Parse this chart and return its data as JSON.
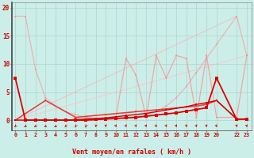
{
  "xlabel": "Vent moyen/en rafales ( km/h )",
  "bg_color": "#cceee8",
  "grid_color": "#aacccc",
  "xlim": [
    -0.3,
    23.5
  ],
  "ylim": [
    -1.8,
    21
  ],
  "yticks": [
    0,
    5,
    10,
    15,
    20
  ],
  "xticks": [
    0,
    1,
    2,
    3,
    4,
    5,
    6,
    7,
    8,
    9,
    10,
    11,
    12,
    13,
    14,
    15,
    16,
    17,
    18,
    19,
    20,
    22,
    23
  ],
  "series": [
    {
      "x": [
        0,
        1,
        2,
        3,
        4,
        5,
        6,
        7,
        8,
        9,
        10,
        11,
        12,
        13,
        14,
        15,
        16,
        17,
        18,
        19,
        20,
        22,
        23
      ],
      "y": [
        18.5,
        18.5,
        9.0,
        4.0,
        2.5,
        1.5,
        1.0,
        0.5,
        0.3,
        0.2,
        0.2,
        0.3,
        0.5,
        1.0,
        1.5,
        2.5,
        4.0,
        6.0,
        8.5,
        11.0,
        13.5,
        18.5,
        11.5
      ],
      "color": "#ff8888",
      "alpha": 0.55,
      "lw": 0.9,
      "marker": "s",
      "ms": 2.0,
      "zorder": 2
    },
    {
      "x": [
        0,
        1,
        2,
        3,
        4,
        5,
        6,
        7,
        8,
        9,
        10,
        11,
        12,
        13,
        14,
        15,
        16,
        17,
        18,
        19,
        20,
        22,
        23
      ],
      "y": [
        0.0,
        0.0,
        0.0,
        0.0,
        0.0,
        0.0,
        0.0,
        0.0,
        0.0,
        0.3,
        0.5,
        11.0,
        8.0,
        0.5,
        11.5,
        7.5,
        11.5,
        11.0,
        0.5,
        11.5,
        0.5,
        0.5,
        11.5
      ],
      "color": "#ff8888",
      "alpha": 0.7,
      "lw": 0.9,
      "marker": "s",
      "ms": 2.0,
      "zorder": 3
    },
    {
      "x": [
        0,
        22
      ],
      "y": [
        0,
        18.5
      ],
      "color": "#ffaaaa",
      "alpha": 0.55,
      "lw": 0.9,
      "marker": "None",
      "ms": 0,
      "zorder": 1
    },
    {
      "x": [
        0,
        23
      ],
      "y": [
        0,
        11.5
      ],
      "color": "#ffbbbb",
      "alpha": 0.55,
      "lw": 0.9,
      "marker": "None",
      "ms": 0,
      "zorder": 1
    },
    {
      "x": [
        0,
        1,
        2,
        3,
        4,
        5,
        6,
        7,
        8,
        9,
        10,
        11,
        12,
        13,
        14,
        15,
        16,
        17,
        18,
        19,
        20,
        22,
        23
      ],
      "y": [
        0,
        0,
        0,
        0,
        0,
        0,
        0.1,
        0.2,
        0.3,
        0.4,
        0.6,
        0.8,
        1.0,
        1.2,
        1.5,
        1.8,
        2.1,
        2.4,
        2.8,
        3.1,
        3.5,
        0.2,
        0.2
      ],
      "color": "#cc0000",
      "alpha": 1.0,
      "lw": 1.0,
      "marker": "s",
      "ms": 1.8,
      "zorder": 5
    },
    {
      "x": [
        0,
        1,
        2,
        3,
        4,
        5,
        6,
        7,
        8,
        9,
        10,
        11,
        12,
        13,
        14,
        15,
        16,
        17,
        18,
        19,
        20,
        22,
        23
      ],
      "y": [
        7.5,
        0,
        0,
        0,
        0,
        0,
        0,
        0,
        0.1,
        0.2,
        0.3,
        0.4,
        0.5,
        0.7,
        0.9,
        1.1,
        1.3,
        1.6,
        1.9,
        2.2,
        7.5,
        0.1,
        0.2
      ],
      "color": "#dd0000",
      "alpha": 1.0,
      "lw": 1.3,
      "marker": "s",
      "ms": 2.5,
      "zorder": 6
    },
    {
      "x": [
        0,
        3,
        6,
        9,
        12,
        15,
        18,
        19,
        20,
        22,
        23
      ],
      "y": [
        0,
        3.5,
        0.5,
        1.0,
        1.5,
        2.0,
        2.5,
        2.8,
        3.5,
        0.2,
        0.2
      ],
      "color": "#ee3333",
      "alpha": 1.0,
      "lw": 1.1,
      "marker": "s",
      "ms": 2.0,
      "zorder": 4
    }
  ],
  "arrows": {
    "y": -1.1,
    "positions": [
      0,
      1,
      2,
      3,
      4,
      5,
      6,
      7,
      8,
      9,
      10,
      11,
      12,
      13,
      14,
      15,
      16,
      17,
      18,
      19,
      20,
      22,
      23
    ],
    "angles_deg": [
      210,
      220,
      220,
      235,
      230,
      210,
      200,
      200,
      185,
      175,
      170,
      170,
      165,
      170,
      165,
      170,
      170,
      175,
      170,
      175,
      165,
      175,
      170
    ]
  }
}
